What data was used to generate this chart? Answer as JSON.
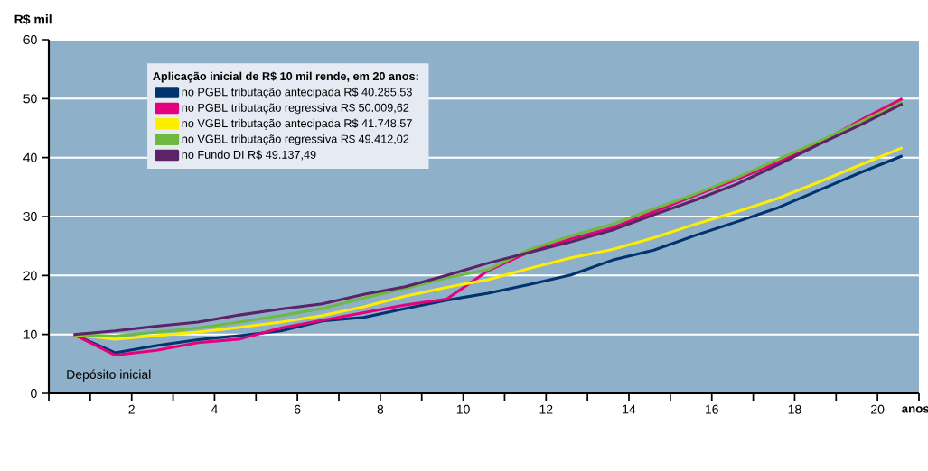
{
  "chart_data": {
    "type": "line",
    "ylabel": "R$ mil",
    "xlabel": "anos",
    "legend_title": "Aplicação inicial de R$ 10 mil rende, em 20 anos:",
    "annotations": [
      "Depósito inicial"
    ],
    "x": [
      0.6,
      1.6,
      2.6,
      3.6,
      4.6,
      5.6,
      6.6,
      7.6,
      8.6,
      9.6,
      10.6,
      11.6,
      12.6,
      13.6,
      14.6,
      15.6,
      16.6,
      17.6,
      18.6,
      19.6,
      20.6
    ],
    "series": [
      {
        "name": "no PGBL tributação antecipada R$ 40.285,53",
        "color": "#003370",
        "values": [
          10,
          6.9,
          8.1,
          9.1,
          9.8,
          10.6,
          12.3,
          12.9,
          14.4,
          15.8,
          17.0,
          18.5,
          20.1,
          22.6,
          24.3,
          26.8,
          29.1,
          31.5,
          34.5,
          37.5,
          40.3
        ]
      },
      {
        "name": "no PGBL tributação regressiva R$ 50.009,62",
        "color": "#e6007e",
        "values": [
          10,
          6.5,
          7.3,
          8.6,
          9.2,
          11.1,
          12.4,
          13.7,
          15.0,
          16.0,
          20.8,
          24.0,
          26.2,
          28.1,
          30.8,
          33.6,
          36.3,
          39.2,
          42.5,
          46.4,
          50.0
        ]
      },
      {
        "name": "no VGBL tributação antecipada R$ 41.748,57",
        "color": "#ffed00",
        "values": [
          10,
          9.2,
          9.8,
          10.4,
          11.2,
          12.1,
          13.2,
          14.7,
          16.5,
          18.0,
          19.3,
          21.2,
          23.0,
          24.4,
          26.4,
          28.7,
          30.8,
          33.1,
          35.9,
          38.8,
          41.7
        ]
      },
      {
        "name": "no VGBL tributação regressiva R$ 49.412,02",
        "color": "#6fb93e",
        "values": [
          10,
          9.7,
          10.4,
          11.1,
          12.1,
          13.2,
          14.4,
          16.2,
          17.8,
          19.6,
          21.0,
          24.4,
          26.7,
          28.7,
          31.3,
          33.8,
          36.6,
          39.7,
          42.8,
          46.1,
          49.4
        ]
      },
      {
        "name": "no Fundo DI R$ 49.137,49",
        "color": "#5c2366",
        "values": [
          10,
          10.6,
          11.4,
          12.1,
          13.3,
          14.3,
          15.2,
          16.8,
          18.1,
          20.0,
          22.1,
          23.9,
          25.7,
          27.7,
          30.3,
          32.8,
          35.5,
          38.8,
          42.3,
          45.6,
          49.1
        ]
      }
    ],
    "xlim": [
      0,
      21
    ],
    "ylim": [
      0,
      60
    ],
    "xticks": [
      {
        "value": 0,
        "label": null
      },
      {
        "value": 1,
        "label": null
      },
      2,
      {
        "value": 3,
        "label": null
      },
      4,
      {
        "value": 5,
        "label": null
      },
      6,
      {
        "value": 7,
        "label": null
      },
      8,
      {
        "value": 9,
        "label": null
      },
      10,
      {
        "value": 11,
        "label": null
      },
      12,
      {
        "value": 13,
        "label": null
      },
      14,
      {
        "value": 15,
        "label": null
      },
      16,
      {
        "value": 17,
        "label": null
      },
      18,
      {
        "value": 19,
        "label": null
      },
      20,
      {
        "value": 21,
        "label": null
      }
    ],
    "yticks": [
      0,
      10,
      20,
      30,
      40,
      50,
      60
    ],
    "grid": "y",
    "legend": "top left",
    "line_style": "solid"
  }
}
